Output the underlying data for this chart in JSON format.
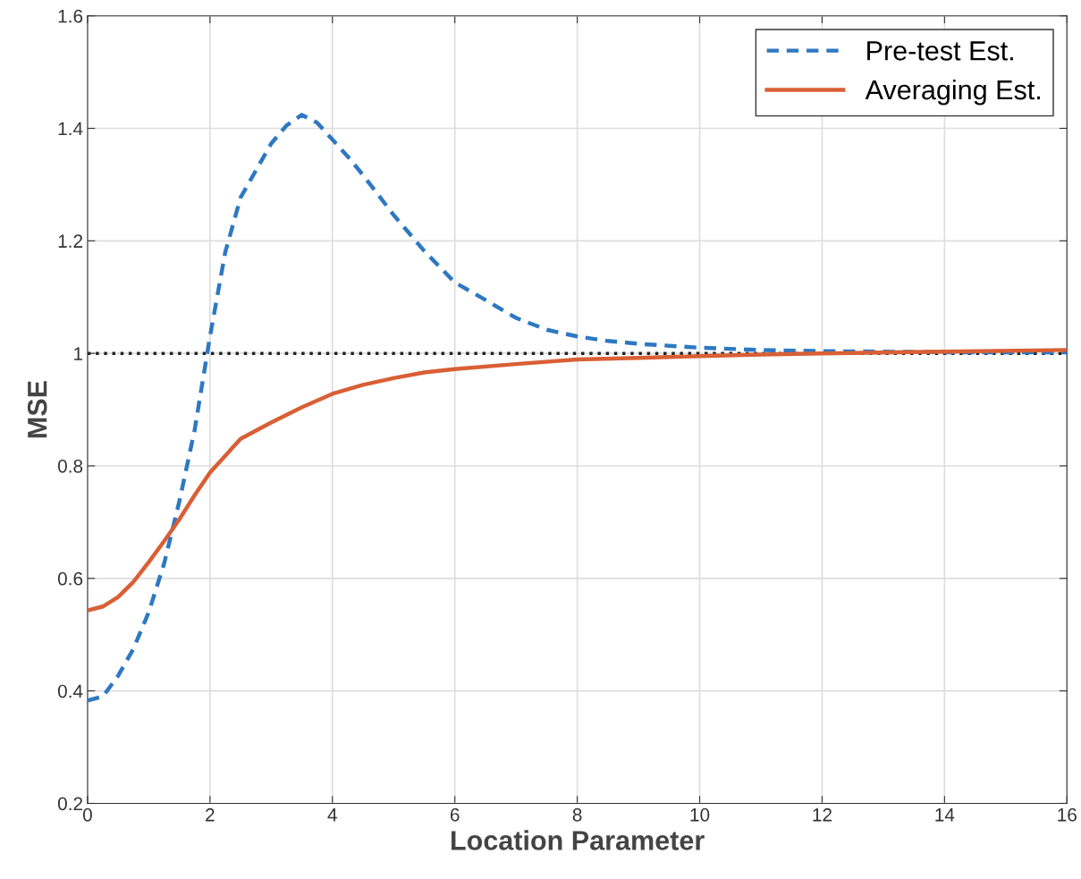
{
  "chart_data": {
    "type": "line",
    "xlabel": "Location Parameter",
    "ylabel": "MSE",
    "xlim": [
      0,
      16
    ],
    "ylim": [
      0.2,
      1.6
    ],
    "xticks": [
      0,
      2,
      4,
      6,
      8,
      10,
      12,
      14,
      16
    ],
    "yticks": [
      0.2,
      0.4,
      0.6,
      0.8,
      1,
      1.2,
      1.4,
      1.6
    ],
    "grid": true,
    "legend": "top right",
    "ref_lines": [
      {
        "axis": "y",
        "value": 1,
        "color": "#222222",
        "line_style": "dotted"
      }
    ],
    "series": [
      {
        "name": "Pre-test Est.",
        "color": "#2e78c2",
        "line_style": "dashed",
        "x": [
          0,
          0.25,
          0.5,
          0.75,
          1,
          1.25,
          1.5,
          1.75,
          2,
          2.25,
          2.5,
          2.75,
          3,
          3.25,
          3.5,
          3.75,
          4,
          4.25,
          4.5,
          5,
          5.5,
          6,
          6.5,
          7,
          7.5,
          8,
          8.5,
          9,
          10,
          11,
          12,
          13,
          14,
          16
        ],
        "values": [
          0.383,
          0.39,
          0.427,
          0.475,
          0.54,
          0.626,
          0.737,
          0.864,
          1.03,
          1.18,
          1.277,
          1.325,
          1.373,
          1.405,
          1.424,
          1.41,
          1.38,
          1.35,
          1.317,
          1.246,
          1.182,
          1.126,
          1.095,
          1.063,
          1.042,
          1.03,
          1.022,
          1.017,
          1.01,
          1.006,
          1.004,
          1.003,
          1.002,
          1.002
        ]
      },
      {
        "name": "Averaging Est.",
        "color": "#d95f35",
        "line_style": "solid",
        "x": [
          0,
          0.25,
          0.5,
          0.75,
          1,
          1.25,
          1.5,
          1.75,
          2,
          2.5,
          3,
          3.5,
          4,
          4.5,
          5,
          5.5,
          6,
          7,
          8,
          9,
          10,
          11,
          12,
          14,
          16
        ],
        "values": [
          0.543,
          0.55,
          0.567,
          0.594,
          0.629,
          0.666,
          0.705,
          0.748,
          0.788,
          0.848,
          0.877,
          0.904,
          0.928,
          0.944,
          0.956,
          0.966,
          0.972,
          0.981,
          0.989,
          0.992,
          0.995,
          0.998,
          1.0,
          1.003,
          1.006
        ]
      }
    ]
  }
}
